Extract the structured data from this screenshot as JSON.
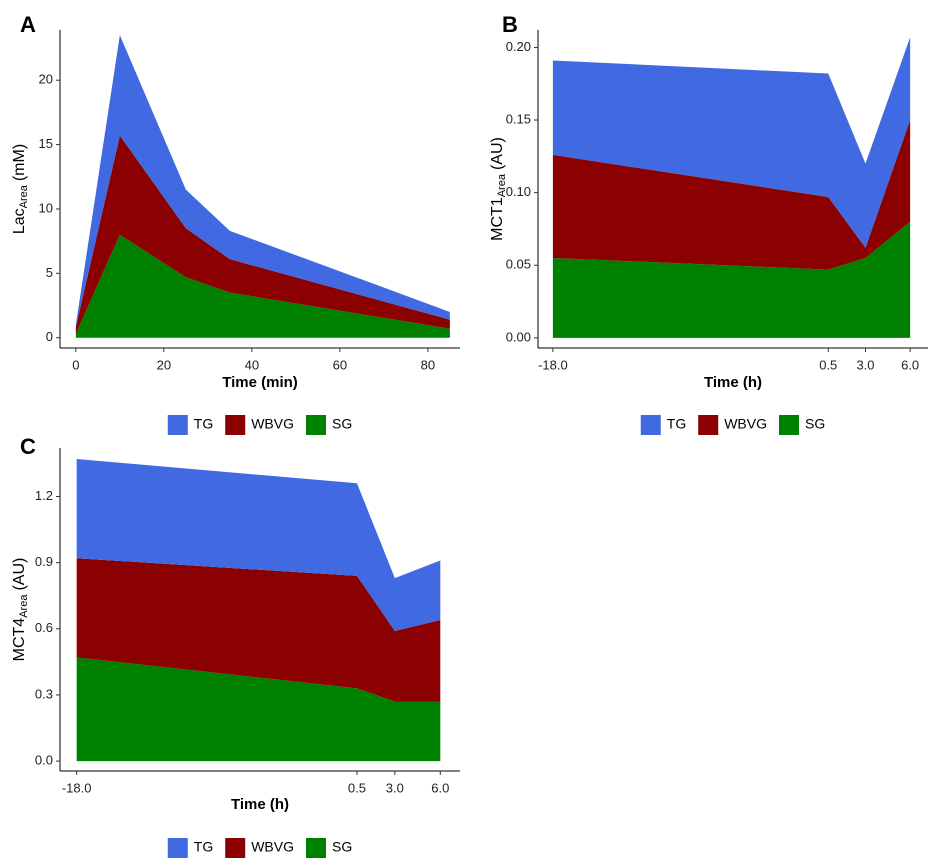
{
  "chart_data": [
    {
      "type": "area",
      "stacked": true,
      "panel": "A",
      "xlabel": "Time (min)",
      "ylabel": "Lac",
      "ylabel_sub": "Area",
      "ylabel_unit": "(mM)",
      "x": [
        0,
        10,
        25,
        35,
        85
      ],
      "series": [
        {
          "name": "TG",
          "color": "#4169e1",
          "values": [
            0.2,
            7.8,
            3.0,
            2.2,
            0.6
          ]
        },
        {
          "name": "WBVG",
          "color": "#8b0000",
          "values": [
            0.5,
            7.7,
            3.8,
            2.6,
            0.7
          ]
        },
        {
          "name": "SG",
          "color": "#008000",
          "values": [
            0.3,
            8.0,
            4.7,
            3.5,
            0.7
          ]
        }
      ],
      "xlim": [
        -3.6,
        87.3
      ],
      "ylim": [
        -0.8,
        23.9
      ],
      "xticks": [
        0,
        20,
        40,
        60,
        80
      ],
      "yticks": [
        0,
        5,
        10,
        15,
        20
      ],
      "legend": "bottom"
    },
    {
      "type": "area",
      "stacked": true,
      "panel": "B",
      "xlabel": "Time (h)",
      "ylabel": "MCT1",
      "ylabel_sub": "Area",
      "ylabel_unit": "(AU)",
      "x": [
        -18,
        0.5,
        3,
        6
      ],
      "series": [
        {
          "name": "TG",
          "color": "#4169e1",
          "values": [
            0.065,
            0.085,
            0.058,
            0.057
          ]
        },
        {
          "name": "WBVG",
          "color": "#8b0000",
          "values": [
            0.071,
            0.05,
            0.007,
            0.07
          ]
        },
        {
          "name": "SG",
          "color": "#008000",
          "values": [
            0.055,
            0.047,
            0.055,
            0.08
          ]
        }
      ],
      "xlim": [
        -19,
        7.2
      ],
      "ylim": [
        -0.007,
        0.212
      ],
      "xticks": [
        {
          "value": -18,
          "label": "-18.0"
        },
        0.5,
        {
          "value": 3,
          "label": "3.0"
        },
        {
          "value": 6,
          "label": "6.0"
        }
      ],
      "yticks": [
        {
          "value": 0,
          "label": "0.00"
        },
        {
          "value": 0.05,
          "label": "0.05"
        },
        {
          "value": 0.1,
          "label": "0.10"
        },
        {
          "value": 0.15,
          "label": "0.15"
        },
        {
          "value": 0.2,
          "label": "0.20"
        }
      ],
      "legend": "bottom"
    },
    {
      "type": "area",
      "stacked": true,
      "panel": "C",
      "xlabel": "Time (h)",
      "ylabel": "MCT4",
      "ylabel_sub": "Area",
      "ylabel_unit": "(AU)",
      "x": [
        -18,
        0.5,
        3,
        6
      ],
      "series": [
        {
          "name": "TG",
          "color": "#4169e1",
          "values": [
            0.45,
            0.42,
            0.24,
            0.27
          ]
        },
        {
          "name": "WBVG",
          "color": "#8b0000",
          "values": [
            0.45,
            0.51,
            0.32,
            0.37
          ]
        },
        {
          "name": "SG",
          "color": "#008000",
          "values": [
            0.47,
            0.33,
            0.27,
            0.27
          ]
        }
      ],
      "xlim": [
        -19.1,
        7.3
      ],
      "ylim": [
        -0.045,
        1.42
      ],
      "xticks": [
        {
          "value": -18,
          "label": "-18.0"
        },
        0.5,
        {
          "value": 3,
          "label": "3.0"
        },
        {
          "value": 6,
          "label": "6.0"
        }
      ],
      "yticks": [
        {
          "value": 0,
          "label": "0.0"
        },
        {
          "value": 0.3,
          "label": "0.3"
        },
        {
          "value": 0.6,
          "label": "0.6"
        },
        {
          "value": 0.9,
          "label": "0.9"
        },
        {
          "value": 1.2,
          "label": "1.2"
        }
      ],
      "legend": "bottom"
    }
  ]
}
